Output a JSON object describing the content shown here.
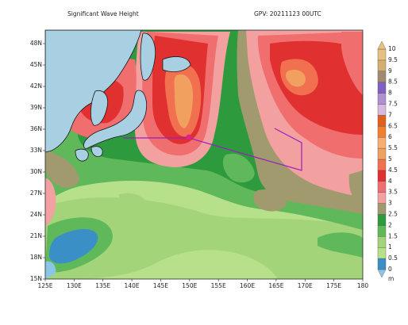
{
  "header": {
    "title": "Significant Wave Height",
    "subtitle": "GPV: 20211123 00UTC"
  },
  "map": {
    "lat_labels": [
      "15N",
      "18N",
      "21N",
      "24N",
      "27N",
      "30N",
      "33N",
      "36N",
      "39N",
      "42N",
      "45N",
      "48N"
    ],
    "lon_labels": [
      "125E",
      "130E",
      "135E",
      "140E",
      "145E",
      "150E",
      "155E",
      "160E",
      "165E",
      "170E",
      "175E",
      "180"
    ]
  },
  "legend": {
    "labels": [
      "0",
      "0.5",
      "1",
      "1.5",
      "2",
      "2.5",
      "3",
      "3.5",
      "4",
      "4.5",
      "5",
      "5.5",
      "6",
      "6.5",
      "7",
      "7.5",
      "8",
      "8.5",
      "9",
      "9.5",
      "10"
    ],
    "colors": [
      "#8cc6e6",
      "#3a8fc6",
      "#b7e08a",
      "#a3d47a",
      "#5fb85a",
      "#2e9a3e",
      "#a09a6e",
      "#f2a0a0",
      "#f06e6e",
      "#e03030",
      "#f07050",
      "#f2a060",
      "#f8b070",
      "#f08030",
      "#e06020",
      "#d8b8e0",
      "#b090d0",
      "#8060c0",
      "#a08a70",
      "#d4b070",
      "#e8c080"
    ],
    "unit": "m"
  }
}
